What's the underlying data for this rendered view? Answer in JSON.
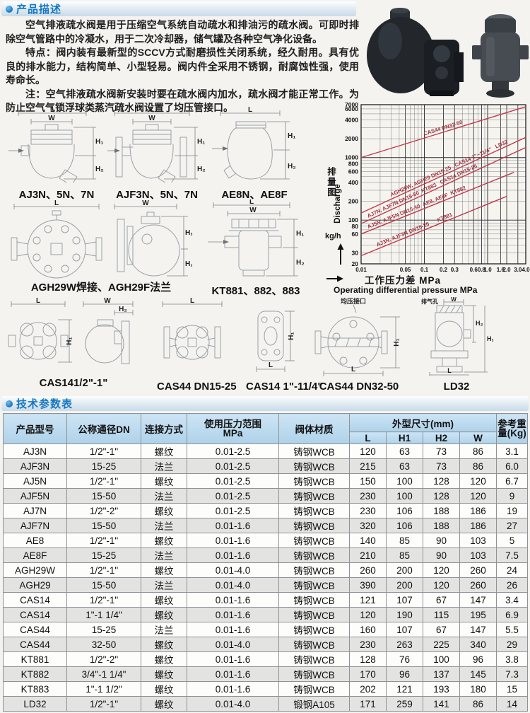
{
  "header1": {
    "title": "产品描述"
  },
  "header2": {
    "title": "技术参数表"
  },
  "description": {
    "p1": "空气排液疏水阀是用于压缩空气系统自动疏水和排油污的疏水阀。可即时排除空气管路中的冷凝水，用于二次冷却器，储气罐及各种空气净化设备。",
    "p2_label": "特点：",
    "p2_text": "阀内装有最新型的SCCV方式耐磨损性关闭系统，经久耐用。具有优良的排水能力，结构简单、小型轻易。阀内件全采用不锈钢，耐腐蚀性强，使用寿命长。",
    "p3_label": "注：",
    "p3_text": "空气排液疏水阀新安装时要在疏水阀内加水，疏水阀才能正常工作。为防止空气气锁浮球类蒸汽疏水阀设置了均压管接口。"
  },
  "dims": {
    "L": "L",
    "W": "W",
    "H1": "H₁",
    "H2": "H₂"
  },
  "diagrams": {
    "row1": [
      {
        "label": "AJ3N、5N、7N"
      },
      {
        "label": "AJF3N、5N、7N"
      },
      {
        "label": "AE8N、AE8F"
      }
    ],
    "row2": [
      {
        "label": "AGH29W焊接、AGH29F法兰"
      },
      {
        "label": "KT881、882、883"
      }
    ],
    "row3": [
      {
        "label": "CAS141/2\"-1\""
      },
      {
        "label": "CAS44 DN15-25"
      },
      {
        "label": "CAS14 1\"-11/4\""
      },
      {
        "label": "CAS44 DN32-50",
        "annotation": "均压接口"
      },
      {
        "label": "LD32",
        "annotation": "排气孔"
      }
    ]
  },
  "chart_data": {
    "type": "line",
    "x_scale": "log",
    "y_scale": "log",
    "xlim": [
      0.01,
      4.0
    ],
    "ylim": [
      20,
      7000
    ],
    "xlabel_cn": "工作压力差  MPa",
    "xlabel_en": "Operating differential pressure MPa",
    "ylabel_cn": "排量图",
    "ylabel_en": "Discharge",
    "ylabel_unit": "kg/h",
    "x_ticks": [
      0.01,
      0.05,
      0.1,
      0.2,
      0.3,
      0.6,
      0.8,
      1.0,
      1.6,
      2.0,
      3.0,
      4.0
    ],
    "x_tick_labels": [
      "0.01",
      "0.05",
      "0.1",
      "0.2",
      "0.3",
      "0.6",
      "0.8",
      "1.0",
      "1.6",
      "2.0",
      "3.0",
      "4.0"
    ],
    "y_ticks": [
      20,
      30,
      60,
      80,
      100,
      200,
      400,
      600,
      800,
      1000,
      2000,
      4000,
      6000,
      7000
    ],
    "line_color": "#c23a4a",
    "label_color": "#a23240",
    "series": [
      {
        "name": "CAS44 DN32-50",
        "points": [
          [
            0.01,
            1000
          ],
          [
            4.0,
            6500
          ]
        ],
        "label_x": 0.1
      },
      {
        "name": "AGH29W, AGH29 DN15-25   CAS14 1\"~11/4\"   LD32",
        "points": [
          [
            0.01,
            130
          ],
          [
            4.0,
            2100
          ]
        ],
        "label_x": 0.03
      },
      {
        "name": "AJ7N, AJF7N DN15-50  KT883   CAS14 DN15-25",
        "points": [
          [
            0.01,
            88
          ],
          [
            4.0,
            1450
          ]
        ],
        "label_x": 0.013
      },
      {
        "name": "AJ5N, AJF5N DN15-50  AE8, AE8F  KT882",
        "points": [
          [
            0.01,
            60
          ],
          [
            2.6,
            580
          ]
        ],
        "label_x": 0.013
      },
      {
        "name": "AJ3N, AJF3N DN15-25      KT881",
        "points": [
          [
            0.01,
            27
          ],
          [
            2.0,
            240
          ]
        ],
        "label_x": 0.018
      }
    ]
  },
  "table": {
    "h": {
      "model": "产品型号",
      "dn": "公称通径DN",
      "conn": "连接方式",
      "pressure": "使用压力范围",
      "pressure_unit": "MPa",
      "material": "阀体材质",
      "dims_group": "外型尺寸(mm)",
      "l": "L",
      "h1": "H1",
      "h2": "H2",
      "w": "W",
      "weight": "参考重量(Kg)"
    },
    "rows": [
      [
        "AJ3N",
        "1/2\"-1\"",
        "螺纹",
        "0.01-2.5",
        "铸钢WCB",
        "120",
        "63",
        "73",
        "86",
        "3.1"
      ],
      [
        "AJF3N",
        "15-25",
        "法兰",
        "0.01-2.5",
        "铸钢WCB",
        "215",
        "63",
        "73",
        "86",
        "6.0"
      ],
      [
        "AJ5N",
        "1/2\"-1\"",
        "螺纹",
        "0.01-2.5",
        "铸钢WCB",
        "150",
        "100",
        "128",
        "120",
        "6.7"
      ],
      [
        "AJF5N",
        "15-50",
        "法兰",
        "0.01-2.5",
        "铸钢WCB",
        "230",
        "100",
        "128",
        "120",
        "9"
      ],
      [
        "AJ7N",
        "1/2\"-2\"",
        "螺纹",
        "0.01-2.5",
        "铸钢WCB",
        "230",
        "106",
        "188",
        "186",
        "19"
      ],
      [
        "AJF7N",
        "15-50",
        "法兰",
        "0.01-1.6",
        "铸钢WCB",
        "320",
        "106",
        "188",
        "186",
        "27"
      ],
      [
        "AE8",
        "1/2\"-1\"",
        "螺纹",
        "0.01-1.6",
        "铸钢WCB",
        "140",
        "85",
        "90",
        "103",
        "5"
      ],
      [
        "AE8F",
        "15-25",
        "法兰",
        "0.01-1.6",
        "铸钢WCB",
        "210",
        "85",
        "90",
        "103",
        "7.5"
      ],
      [
        "AGH29W",
        "1/2\"-1\"",
        "螺纹",
        "0.01-4.0",
        "铸钢WCB",
        "260",
        "200",
        "120",
        "260",
        "24"
      ],
      [
        "AGH29",
        "15-50",
        "法兰",
        "0.01-4.0",
        "铸钢WCB",
        "390",
        "200",
        "120",
        "260",
        "26"
      ],
      [
        "CAS14",
        "1/2\"-1\"",
        "螺纹",
        "0.01-1.6",
        "铸钢WCB",
        "121",
        "107",
        "67",
        "147",
        "3.4"
      ],
      [
        "CAS14",
        "1\"-1 1/4\"",
        "螺纹",
        "0.01-1.6",
        "铸钢WCB",
        "120",
        "190",
        "115",
        "195",
        "6.9"
      ],
      [
        "CAS44",
        "15-25",
        "法兰",
        "0.01-1.6",
        "铸钢WCB",
        "160",
        "107",
        "67",
        "147",
        "5.5"
      ],
      [
        "CAS44",
        "32-50",
        "螺纹",
        "0.01-4.0",
        "铸钢WCB",
        "230",
        "263",
        "225",
        "340",
        "29"
      ],
      [
        "KT881",
        "1/2\"-2\"",
        "螺纹",
        "0.01-1.6",
        "铸钢WCB",
        "128",
        "76",
        "100",
        "96",
        "3.8"
      ],
      [
        "KT882",
        "3/4\"-1 1/4\"",
        "螺纹",
        "0.01-1.6",
        "铸钢WCB",
        "170",
        "96",
        "137",
        "145",
        "7.3"
      ],
      [
        "KT883",
        "1\"-1 1/2\"",
        "螺纹",
        "0.01-1.6",
        "铸钢WCB",
        "202",
        "121",
        "193",
        "180",
        "15"
      ],
      [
        "LD32",
        "1/2\"-1\"",
        "螺纹",
        "0.01-4.0",
        "锻钢A105",
        "171",
        "259",
        "141",
        "86",
        "14"
      ]
    ]
  }
}
